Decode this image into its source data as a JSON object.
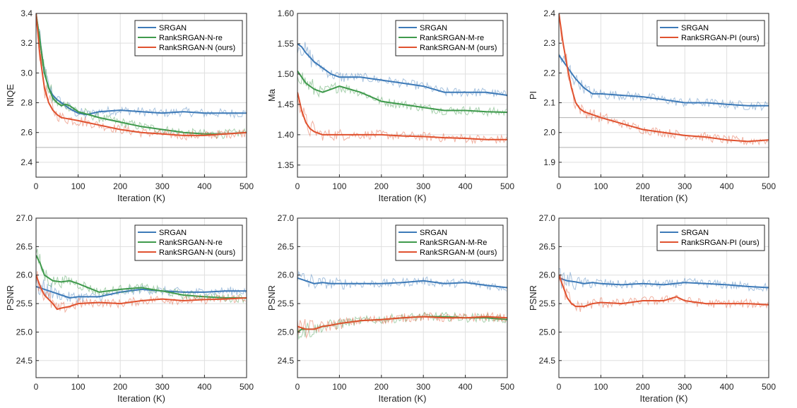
{
  "colors": {
    "blue": "#3d7ab8",
    "green": "#3f9a4c",
    "red": "#e0522f"
  },
  "chart_data": [
    {
      "type": "line",
      "xlabel": "Iteration (K)",
      "ylabel": "NIQE",
      "xlim": [
        0,
        500
      ],
      "ylim": [
        2.3,
        3.4
      ],
      "xticks": [
        0,
        100,
        200,
        300,
        400,
        500
      ],
      "yticks": [
        2.4,
        2.6,
        2.8,
        3.0,
        3.2,
        3.4
      ],
      "ytick_labels": [
        "2.4",
        "2.6",
        "2.8",
        "3.0",
        "3.2",
        "3.4"
      ],
      "legend": "top-right",
      "grid": true,
      "ref_line": 2.5,
      "series": [
        {
          "name": "SRGAN",
          "color": "blue",
          "x": [
            0,
            10,
            20,
            30,
            40,
            50,
            60,
            70,
            80,
            100,
            120,
            150,
            200,
            250,
            300,
            350,
            400,
            450,
            500
          ],
          "y": [
            3.4,
            3.2,
            3.0,
            2.9,
            2.85,
            2.82,
            2.8,
            2.78,
            2.76,
            2.73,
            2.72,
            2.74,
            2.75,
            2.74,
            2.73,
            2.74,
            2.73,
            2.73,
            2.73
          ]
        },
        {
          "name": "RankSRGAN-N-re",
          "color": "green",
          "x": [
            0,
            10,
            20,
            30,
            40,
            50,
            60,
            70,
            80,
            100,
            150,
            200,
            250,
            300,
            350,
            400,
            450,
            500
          ],
          "y": [
            3.4,
            3.2,
            3.0,
            2.9,
            2.83,
            2.8,
            2.78,
            2.79,
            2.78,
            2.74,
            2.7,
            2.67,
            2.64,
            2.62,
            2.6,
            2.59,
            2.59,
            2.6
          ]
        },
        {
          "name": "RankSRGAN-N (ours)",
          "color": "red",
          "x": [
            0,
            10,
            20,
            30,
            40,
            50,
            60,
            80,
            100,
            150,
            200,
            250,
            300,
            350,
            400,
            450,
            500
          ],
          "y": [
            3.4,
            3.1,
            2.9,
            2.8,
            2.75,
            2.72,
            2.7,
            2.69,
            2.68,
            2.65,
            2.62,
            2.6,
            2.59,
            2.58,
            2.58,
            2.59,
            2.6
          ]
        }
      ]
    },
    {
      "type": "line",
      "xlabel": "Iteration (K)",
      "ylabel": "Ma",
      "xlim": [
        0,
        500
      ],
      "ylim": [
        1.33,
        1.6
      ],
      "xticks": [
        0,
        100,
        200,
        300,
        400,
        500
      ],
      "yticks": [
        1.35,
        1.4,
        1.45,
        1.5,
        1.55,
        1.6
      ],
      "ytick_labels": [
        "1.35",
        "1.40",
        "1.45",
        "1.50",
        "1.55",
        "1.60"
      ],
      "legend": "top-right",
      "grid": true,
      "ref_line": 1.38,
      "series": [
        {
          "name": "SRGAN",
          "color": "blue",
          "x": [
            0,
            10,
            20,
            40,
            60,
            80,
            100,
            150,
            200,
            250,
            300,
            350,
            400,
            450,
            500
          ],
          "y": [
            1.55,
            1.545,
            1.535,
            1.52,
            1.51,
            1.5,
            1.495,
            1.495,
            1.49,
            1.485,
            1.48,
            1.47,
            1.47,
            1.47,
            1.465
          ]
        },
        {
          "name": "RankSRGAN-M-re",
          "color": "green",
          "x": [
            0,
            10,
            20,
            40,
            60,
            80,
            100,
            150,
            200,
            250,
            300,
            350,
            400,
            450,
            500
          ],
          "y": [
            1.505,
            1.495,
            1.485,
            1.475,
            1.47,
            1.475,
            1.48,
            1.47,
            1.455,
            1.45,
            1.445,
            1.44,
            1.44,
            1.438,
            1.437
          ]
        },
        {
          "name": "RankSRGAN-M (ours)",
          "color": "red",
          "x": [
            0,
            10,
            20,
            30,
            40,
            60,
            80,
            100,
            150,
            200,
            250,
            300,
            350,
            400,
            450,
            500
          ],
          "y": [
            1.47,
            1.44,
            1.42,
            1.41,
            1.405,
            1.4,
            1.4,
            1.4,
            1.4,
            1.4,
            1.398,
            1.397,
            1.395,
            1.394,
            1.392,
            1.392
          ]
        }
      ]
    },
    {
      "type": "line",
      "xlabel": "Iteration (K)",
      "ylabel": "PI",
      "xlim": [
        0,
        500
      ],
      "ylim": [
        1.85,
        2.4
      ],
      "xticks": [
        0,
        100,
        200,
        300,
        400,
        500
      ],
      "yticks": [
        1.9,
        2.0,
        2.1,
        2.2,
        2.3,
        2.4
      ],
      "ytick_labels": [
        "1.9",
        "2.0",
        "2.1",
        "2.2",
        "2.3",
        "2.4"
      ],
      "legend": "top-right",
      "grid": true,
      "ref_lines": [
        2.05,
        1.95
      ],
      "series": [
        {
          "name": "SRGAN",
          "color": "blue",
          "x": [
            0,
            10,
            20,
            30,
            40,
            60,
            80,
            100,
            150,
            200,
            250,
            300,
            350,
            400,
            450,
            500
          ],
          "y": [
            2.26,
            2.24,
            2.22,
            2.2,
            2.18,
            2.15,
            2.13,
            2.13,
            2.125,
            2.12,
            2.11,
            2.1,
            2.1,
            2.095,
            2.09,
            2.09
          ]
        },
        {
          "name": "RankSRGAN-PI (ours)",
          "color": "red",
          "x": [
            0,
            5,
            10,
            20,
            30,
            40,
            50,
            60,
            80,
            100,
            150,
            200,
            250,
            300,
            350,
            400,
            450,
            500
          ],
          "y": [
            2.4,
            2.35,
            2.3,
            2.22,
            2.15,
            2.1,
            2.08,
            2.07,
            2.06,
            2.05,
            2.03,
            2.01,
            2.0,
            1.99,
            1.985,
            1.975,
            1.97,
            1.975
          ]
        }
      ]
    },
    {
      "type": "line",
      "xlabel": "Iteration (K)",
      "ylabel": "PSNR",
      "xlim": [
        0,
        500
      ],
      "ylim": [
        24.2,
        27.0
      ],
      "xticks": [
        0,
        100,
        200,
        300,
        400,
        500
      ],
      "yticks": [
        24.5,
        25.0,
        25.5,
        26.0,
        26.5,
        27.0
      ],
      "ytick_labels": [
        "24.5",
        "25.0",
        "25.5",
        "26.0",
        "26.5",
        "27.0"
      ],
      "legend": "top-right",
      "grid": true,
      "series": [
        {
          "name": "SRGAN",
          "color": "blue",
          "x": [
            0,
            20,
            40,
            60,
            80,
            100,
            150,
            200,
            250,
            300,
            350,
            400,
            450,
            500
          ],
          "y": [
            25.8,
            25.75,
            25.7,
            25.65,
            25.6,
            25.62,
            25.62,
            25.7,
            25.75,
            25.72,
            25.7,
            25.7,
            25.72,
            25.72
          ]
        },
        {
          "name": "RankSRGAN-N-re",
          "color": "green",
          "x": [
            0,
            10,
            20,
            40,
            60,
            80,
            100,
            150,
            200,
            250,
            300,
            350,
            400,
            450,
            500
          ],
          "y": [
            26.35,
            26.2,
            26.0,
            25.9,
            25.88,
            25.9,
            25.85,
            25.7,
            25.75,
            25.78,
            25.72,
            25.65,
            25.62,
            25.6,
            25.6
          ]
        },
        {
          "name": "RankSRGAN-N (ours)",
          "color": "red",
          "x": [
            0,
            10,
            20,
            40,
            50,
            60,
            80,
            100,
            150,
            200,
            250,
            300,
            350,
            400,
            450,
            500
          ],
          "y": [
            26.0,
            25.8,
            25.65,
            25.5,
            25.4,
            25.42,
            25.45,
            25.5,
            25.52,
            25.5,
            25.55,
            25.58,
            25.55,
            25.57,
            25.58,
            25.6
          ]
        }
      ]
    },
    {
      "type": "line",
      "xlabel": "Iteration (K)",
      "ylabel": "PSNR",
      "xlim": [
        0,
        500
      ],
      "ylim": [
        24.2,
        27.0
      ],
      "xticks": [
        0,
        100,
        200,
        300,
        400,
        500
      ],
      "yticks": [
        24.5,
        25.0,
        25.5,
        26.0,
        26.5,
        27.0
      ],
      "ytick_labels": [
        "24.5",
        "25.0",
        "25.5",
        "26.0",
        "26.5",
        "27.0"
      ],
      "legend": "top-right",
      "grid": true,
      "series": [
        {
          "name": "SRGAN",
          "color": "blue",
          "x": [
            0,
            20,
            40,
            60,
            80,
            100,
            150,
            200,
            250,
            300,
            350,
            400,
            450,
            500
          ],
          "y": [
            25.95,
            25.9,
            25.85,
            25.87,
            25.85,
            25.85,
            25.85,
            25.85,
            25.87,
            25.9,
            25.85,
            25.87,
            25.82,
            25.78
          ]
        },
        {
          "name": "RankSRGAN-M-Re",
          "color": "green",
          "x": [
            0,
            10,
            20,
            40,
            60,
            80,
            100,
            150,
            200,
            250,
            300,
            350,
            400,
            450,
            500
          ],
          "y": [
            25.0,
            25.05,
            25.05,
            25.05,
            25.1,
            25.12,
            25.15,
            25.2,
            25.22,
            25.25,
            25.27,
            25.27,
            25.25,
            25.25,
            25.22
          ]
        },
        {
          "name": "RankSRGAN-M (ours)",
          "color": "red",
          "x": [
            0,
            20,
            40,
            60,
            80,
            100,
            150,
            200,
            250,
            300,
            350,
            400,
            450,
            500
          ],
          "y": [
            25.1,
            25.05,
            25.05,
            25.1,
            25.12,
            25.15,
            25.2,
            25.22,
            25.25,
            25.27,
            25.25,
            25.25,
            25.27,
            25.25
          ]
        }
      ]
    },
    {
      "type": "line",
      "xlabel": "Iteration (K)",
      "ylabel": "PSNR",
      "xlim": [
        0,
        500
      ],
      "ylim": [
        24.2,
        27.0
      ],
      "xticks": [
        0,
        100,
        200,
        300,
        400,
        500
      ],
      "yticks": [
        24.5,
        25.0,
        25.5,
        26.0,
        26.5,
        27.0
      ],
      "ytick_labels": [
        "24.5",
        "25.0",
        "25.5",
        "26.0",
        "26.5",
        "27.0"
      ],
      "legend": "top-right",
      "grid": true,
      "series": [
        {
          "name": "SRGAN",
          "color": "blue",
          "x": [
            0,
            20,
            40,
            60,
            80,
            100,
            150,
            200,
            250,
            300,
            350,
            400,
            450,
            500
          ],
          "y": [
            25.95,
            25.9,
            25.88,
            25.85,
            25.87,
            25.85,
            25.83,
            25.85,
            25.83,
            25.87,
            25.85,
            25.83,
            25.8,
            25.78
          ]
        },
        {
          "name": "RankSRGAN-PI (ours)",
          "color": "red",
          "x": [
            0,
            10,
            20,
            30,
            40,
            60,
            80,
            100,
            150,
            200,
            250,
            280,
            300,
            350,
            400,
            450,
            500
          ],
          "y": [
            26.0,
            25.8,
            25.6,
            25.5,
            25.45,
            25.45,
            25.5,
            25.52,
            25.5,
            25.55,
            25.55,
            25.62,
            25.55,
            25.5,
            25.5,
            25.5,
            25.48
          ]
        }
      ]
    }
  ]
}
